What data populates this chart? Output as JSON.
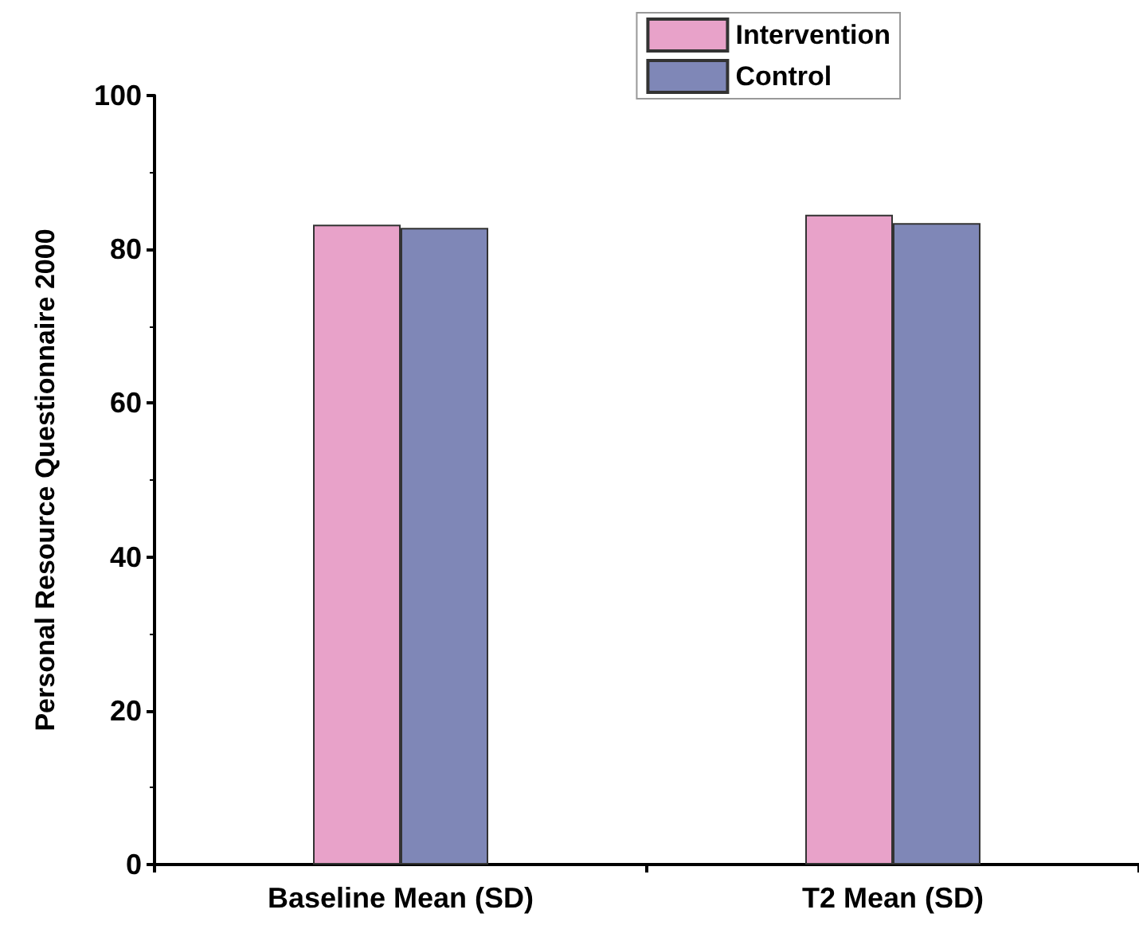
{
  "chart_data": {
    "type": "bar",
    "ylabel": "Personal Resource Questionnaire 2000",
    "categories": [
      "Baseline Mean (SD)",
      "T2 Mean (SD)"
    ],
    "series": [
      {
        "name": "Intervention",
        "color": "#e8a2c9",
        "values": [
          83.2,
          84.5
        ]
      },
      {
        "name": "Control",
        "color": "#7f87b7",
        "values": [
          82.8,
          83.4
        ]
      }
    ],
    "ylim": [
      0,
      100
    ],
    "yticks": [
      0,
      20,
      40,
      60,
      80,
      100
    ],
    "grid": false,
    "legend": "top right"
  }
}
